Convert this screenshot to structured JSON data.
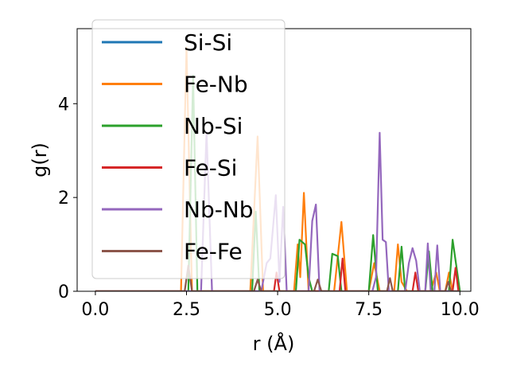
{
  "chart_data": {
    "type": "line",
    "title": "",
    "xlabel": "r (Å)",
    "ylabel": "g(r)",
    "xlim": [
      -0.5,
      10.3
    ],
    "ylim": [
      0,
      5.6
    ],
    "xticks": [
      0.0,
      2.5,
      5.0,
      7.5,
      10.0
    ],
    "xtick_labels": [
      "0.0",
      "2.5",
      "5.0",
      "7.5",
      "10.0"
    ],
    "yticks": [
      0,
      2,
      4
    ],
    "ytick_labels": [
      "0",
      "2",
      "4"
    ],
    "grid": false,
    "legend_position": "upper-left",
    "series": [
      {
        "name": "Si-Si",
        "color": "#1f77b4",
        "points": [
          [
            0,
            0
          ],
          [
            10,
            0
          ]
        ]
      },
      {
        "name": "Fe-Nb",
        "color": "#ff7f0e",
        "points": [
          [
            0,
            0
          ],
          [
            2.35,
            0
          ],
          [
            2.5,
            5.2
          ],
          [
            2.65,
            0
          ],
          [
            4.25,
            0
          ],
          [
            4.45,
            3.3
          ],
          [
            4.6,
            0
          ],
          [
            5.45,
            0
          ],
          [
            5.55,
            1.0
          ],
          [
            5.62,
            0.3
          ],
          [
            5.72,
            2.1
          ],
          [
            5.85,
            0
          ],
          [
            6.55,
            0
          ],
          [
            6.75,
            1.48
          ],
          [
            6.9,
            0
          ],
          [
            7.5,
            0
          ],
          [
            7.65,
            0.6
          ],
          [
            7.8,
            0
          ],
          [
            8.2,
            0
          ],
          [
            8.3,
            1.0
          ],
          [
            8.4,
            0.2
          ],
          [
            8.55,
            0
          ],
          [
            9.2,
            0
          ],
          [
            9.35,
            0.4
          ],
          [
            9.45,
            0
          ],
          [
            9.6,
            0
          ],
          [
            9.7,
            0.4
          ],
          [
            9.8,
            0
          ],
          [
            10,
            0
          ]
        ]
      },
      {
        "name": "Nb-Si",
        "color": "#2ca02c",
        "points": [
          [
            0,
            0
          ],
          [
            2.55,
            0
          ],
          [
            2.68,
            4.6
          ],
          [
            2.8,
            0
          ],
          [
            4.3,
            0
          ],
          [
            4.4,
            1.7
          ],
          [
            4.5,
            0
          ],
          [
            5.5,
            0
          ],
          [
            5.6,
            1.1
          ],
          [
            5.75,
            1.0
          ],
          [
            5.85,
            0.3
          ],
          [
            5.95,
            0
          ],
          [
            6.4,
            0
          ],
          [
            6.5,
            0.8
          ],
          [
            6.65,
            0.75
          ],
          [
            6.75,
            0
          ],
          [
            7.5,
            0
          ],
          [
            7.62,
            1.2
          ],
          [
            7.75,
            0
          ],
          [
            8.3,
            0
          ],
          [
            8.4,
            0.95
          ],
          [
            8.5,
            0
          ],
          [
            9.05,
            0
          ],
          [
            9.15,
            0.85
          ],
          [
            9.25,
            0
          ],
          [
            9.7,
            0
          ],
          [
            9.8,
            1.1
          ],
          [
            9.9,
            0.55
          ],
          [
            10,
            0
          ]
        ]
      },
      {
        "name": "Fe-Si",
        "color": "#d62728",
        "points": [
          [
            0,
            0
          ],
          [
            4.9,
            0
          ],
          [
            4.97,
            0.4
          ],
          [
            5.05,
            0
          ],
          [
            6.7,
            0
          ],
          [
            6.78,
            0.7
          ],
          [
            6.86,
            0
          ],
          [
            8.7,
            0
          ],
          [
            8.78,
            0.4
          ],
          [
            8.86,
            0
          ],
          [
            9.8,
            0
          ],
          [
            9.88,
            0.5
          ],
          [
            9.96,
            0
          ],
          [
            10,
            0
          ]
        ]
      },
      {
        "name": "Nb-Nb",
        "color": "#9467bd",
        "points": [
          [
            0,
            0
          ],
          [
            2.9,
            0
          ],
          [
            3.05,
            3.4
          ],
          [
            3.2,
            0
          ],
          [
            4.55,
            0
          ],
          [
            4.7,
            0.6
          ],
          [
            4.8,
            0.7
          ],
          [
            4.95,
            2.05
          ],
          [
            5.05,
            0.2
          ],
          [
            5.15,
            1.8
          ],
          [
            5.25,
            0
          ],
          [
            5.85,
            0
          ],
          [
            5.95,
            1.5
          ],
          [
            6.05,
            1.85
          ],
          [
            6.15,
            0
          ],
          [
            7.6,
            0
          ],
          [
            7.7,
            0.3
          ],
          [
            7.8,
            3.38
          ],
          [
            7.88,
            1.1
          ],
          [
            7.97,
            1.05
          ],
          [
            8.05,
            0
          ],
          [
            8.5,
            0
          ],
          [
            8.6,
            0.6
          ],
          [
            8.7,
            0.92
          ],
          [
            8.8,
            0.65
          ],
          [
            8.9,
            0
          ],
          [
            9.05,
            0
          ],
          [
            9.12,
            1.02
          ],
          [
            9.2,
            0
          ],
          [
            9.3,
            0
          ],
          [
            9.38,
            0.98
          ],
          [
            9.46,
            0
          ],
          [
            10,
            0
          ]
        ]
      },
      {
        "name": "Fe-Fe",
        "color": "#8c564b",
        "points": [
          [
            0,
            0
          ],
          [
            2.45,
            0
          ],
          [
            2.55,
            0.55
          ],
          [
            2.65,
            0
          ],
          [
            4.35,
            0
          ],
          [
            4.45,
            0.25
          ],
          [
            4.55,
            0
          ],
          [
            6.0,
            0
          ],
          [
            6.1,
            0.25
          ],
          [
            6.2,
            0
          ],
          [
            8.0,
            0
          ],
          [
            8.08,
            0.28
          ],
          [
            8.16,
            0
          ],
          [
            9.6,
            0
          ],
          [
            9.68,
            0.2
          ],
          [
            9.76,
            0
          ],
          [
            10,
            0
          ]
        ]
      }
    ]
  }
}
